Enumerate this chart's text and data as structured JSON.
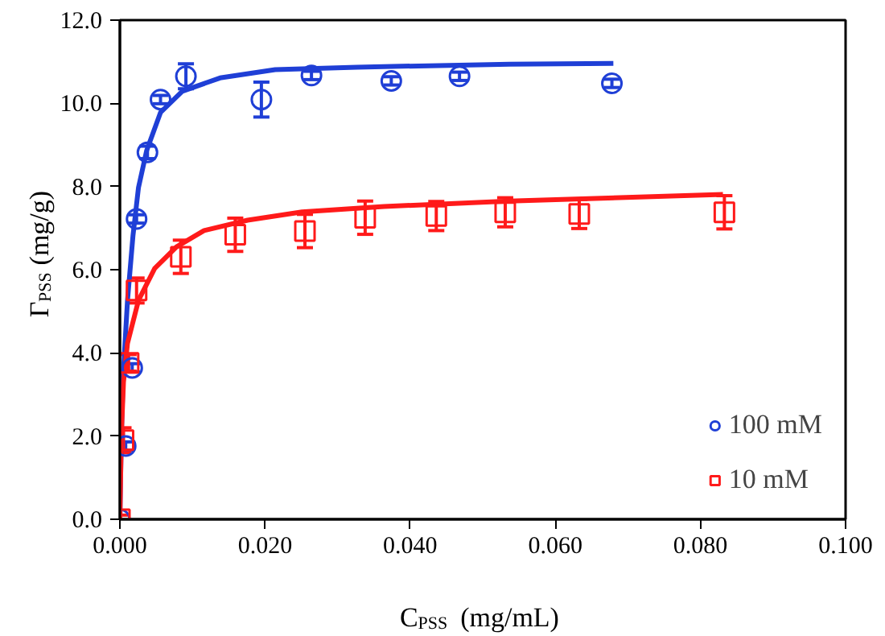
{
  "chart_data": {
    "type": "scatter",
    "xlabel": "C$_{PSS}$ (mg/mL)",
    "ylabel": "Γ$_{PSS}$ (mg/g)",
    "xlim": [
      0,
      0.1
    ],
    "ylim": [
      0,
      12
    ],
    "xticks": [
      {
        "value": 0,
        "label": "0.000"
      },
      {
        "value": 0.02,
        "label": "0.020"
      },
      {
        "value": 0.04,
        "label": "0.040"
      },
      {
        "value": 0.06,
        "label": "0.060"
      },
      {
        "value": 0.08,
        "label": "0.080"
      },
      {
        "value": 0.1,
        "label": "0.100"
      }
    ],
    "yticks": [
      {
        "value": 0,
        "label": "0.0"
      },
      {
        "value": 2,
        "label": "2.0"
      },
      {
        "value": 4,
        "label": "4.0"
      },
      {
        "value": 6,
        "label": "6.0"
      },
      {
        "value": 8,
        "label": "8.0"
      },
      {
        "value": 10,
        "label": "10.0"
      },
      {
        "value": 12,
        "label": "12.0"
      }
    ],
    "grid": false,
    "legend": "bottom right",
    "series": [
      {
        "name": "100 mM",
        "type": "scatter",
        "marker": "circle",
        "color": "#1f3fd6",
        "x": [
          0,
          0.0008,
          0.0017,
          0.0023,
          0.0038,
          0.0056,
          0.0091,
          0.0195,
          0.0264,
          0.0374,
          0.0468,
          0.0678
        ],
        "values": [
          0,
          1.76,
          3.64,
          7.22,
          8.82,
          10.09,
          10.65,
          10.09,
          10.67,
          10.54,
          10.65,
          10.48
        ],
        "errors": [
          null,
          0.1,
          0.1,
          0.1,
          0.15,
          0.1,
          0.3,
          0.42,
          0.1,
          0.1,
          0.1,
          0.1
        ]
      },
      {
        "name": "10 mM",
        "type": "scatter",
        "marker": "square",
        "color": "#ff1a1a",
        "x": [
          0,
          0.0005,
          0.0012,
          0.0023,
          0.0084,
          0.0159,
          0.0255,
          0.0338,
          0.0436,
          0.0531,
          0.0633,
          0.0833
        ],
        "values": [
          0,
          1.9,
          3.76,
          5.5,
          6.31,
          6.84,
          6.93,
          7.25,
          7.29,
          7.38,
          7.34,
          7.38
        ],
        "errors": [
          0.1,
          0.3,
          0.2,
          0.3,
          0.4,
          0.4,
          0.4,
          0.4,
          0.35,
          0.35,
          0.35,
          0.4
        ]
      },
      {
        "type": "line",
        "color": "#1f3fd6",
        "x": [
          0,
          0.0002,
          0.00045,
          0.00105,
          0.0018,
          0.00256,
          0.0037,
          0.0056,
          0.0086,
          0.0138,
          0.0214,
          0.0327,
          0.0537,
          0.068
        ],
        "values": [
          0,
          2.0,
          3.45,
          5.26,
          6.81,
          7.97,
          8.87,
          9.78,
          10.29,
          10.61,
          10.81,
          10.87,
          10.94,
          10.96
        ]
      },
      {
        "type": "line",
        "color": "#ff1a1a",
        "x": [
          0,
          0.0002,
          0.0005,
          0.00105,
          0.00256,
          0.0048,
          0.0078,
          0.0116,
          0.0176,
          0.0251,
          0.0364,
          0.0537,
          0.0831
        ],
        "values": [
          0,
          2.0,
          3.3,
          4.23,
          5.26,
          6.03,
          6.55,
          6.94,
          7.19,
          7.39,
          7.52,
          7.65,
          7.81
        ]
      }
    ]
  }
}
